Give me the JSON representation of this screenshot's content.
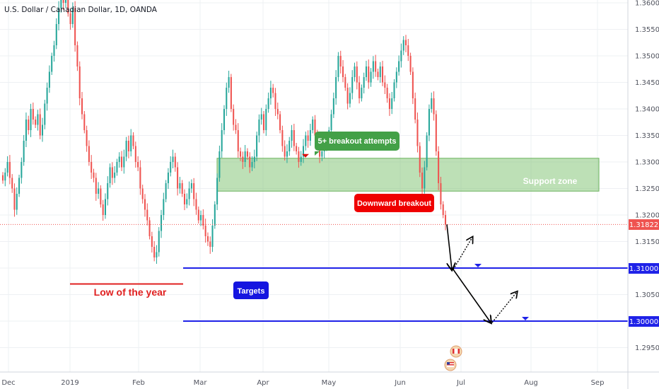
{
  "chart_data": {
    "type": "candlestick",
    "title": "U.S. Dollar / Canadian Dollar, 1D, OANDA",
    "ylim": [
      1.2915,
      1.361
    ],
    "y_ticks": [
      1.36,
      1.355,
      1.35,
      1.345,
      1.34,
      1.335,
      1.33,
      1.325,
      1.32,
      1.315,
      1.31,
      1.305,
      1.3,
      1.295
    ],
    "x_ticks": [
      "Dec",
      "2019",
      "Feb",
      "Mar",
      "Apr",
      "May",
      "Jun",
      "Jul",
      "Aug",
      "Sep"
    ],
    "current_price": 1.31822,
    "candle_closes": [
      1.3265,
      1.328,
      1.33,
      1.327,
      1.325,
      1.321,
      1.324,
      1.327,
      1.33,
      1.334,
      1.338,
      1.336,
      1.34,
      1.338,
      1.337,
      1.339,
      1.335,
      1.337,
      1.341,
      1.344,
      1.347,
      1.35,
      1.352,
      1.356,
      1.359,
      1.362,
      1.36,
      1.361,
      1.358,
      1.356,
      1.359,
      1.352,
      1.348,
      1.342,
      1.339,
      1.336,
      1.333,
      1.33,
      1.328,
      1.327,
      1.324,
      1.325,
      1.322,
      1.32,
      1.323,
      1.326,
      1.329,
      1.327,
      1.328,
      1.33,
      1.331,
      1.329,
      1.331,
      1.334,
      1.332,
      1.335,
      1.333,
      1.33,
      1.329,
      1.325,
      1.323,
      1.321,
      1.319,
      1.316,
      1.314,
      1.312,
      1.313,
      1.317,
      1.32,
      1.323,
      1.326,
      1.328,
      1.33,
      1.331,
      1.329,
      1.325,
      1.326,
      1.324,
      1.322,
      1.323,
      1.325,
      1.326,
      1.323,
      1.321,
      1.319,
      1.32,
      1.318,
      1.316,
      1.315,
      1.314,
      1.318,
      1.322,
      1.327,
      1.332,
      1.336,
      1.34,
      1.344,
      1.346,
      1.34,
      1.337,
      1.336,
      1.332,
      1.331,
      1.33,
      1.332,
      1.331,
      1.329,
      1.33,
      1.331,
      1.335,
      1.338,
      1.339,
      1.336,
      1.34,
      1.342,
      1.344,
      1.343,
      1.34,
      1.339,
      1.336,
      1.333,
      1.331,
      1.332,
      1.334,
      1.336,
      1.333,
      1.332,
      1.33,
      1.331,
      1.333,
      1.335,
      1.334,
      1.336,
      1.338,
      1.335,
      1.333,
      1.331,
      1.332,
      1.333,
      1.334,
      1.336,
      1.339,
      1.342,
      1.346,
      1.35,
      1.348,
      1.346,
      1.344,
      1.341,
      1.343,
      1.346,
      1.348,
      1.345,
      1.342,
      1.344,
      1.346,
      1.348,
      1.345,
      1.347,
      1.349,
      1.347,
      1.346,
      1.348,
      1.345,
      1.344,
      1.342,
      1.34,
      1.342,
      1.345,
      1.347,
      1.349,
      1.351,
      1.353,
      1.352,
      1.35,
      1.347,
      1.342,
      1.338,
      1.333,
      1.328,
      1.325,
      1.329,
      1.335,
      1.34,
      1.342,
      1.339,
      1.332,
      1.326,
      1.322,
      1.32,
      1.3182
    ],
    "annotations": {
      "breakout_attempts": "5+ breakout attempts",
      "support_zone": "Support zone",
      "downward_breakout": "Downward breakout",
      "low_of_year": "Low of the year",
      "targets": "Targets"
    },
    "levels": {
      "support_zone": [
        1.3245,
        1.3307
      ],
      "low_of_year": 1.307,
      "target_1": 1.31,
      "target_2": 1.3
    },
    "price_labels": {
      "current": "1.31822",
      "target_1": "1.31000",
      "target_2": "1.30000"
    }
  },
  "colors": {
    "up": "#26a69a",
    "down": "#ef5350",
    "target_line": "#1f22e8",
    "zone_fill": "#86c77a",
    "breakout_label": "#ef0000",
    "attempts_label": "#43a047",
    "targets_label": "#1515e0",
    "low_line": "#e02020"
  }
}
